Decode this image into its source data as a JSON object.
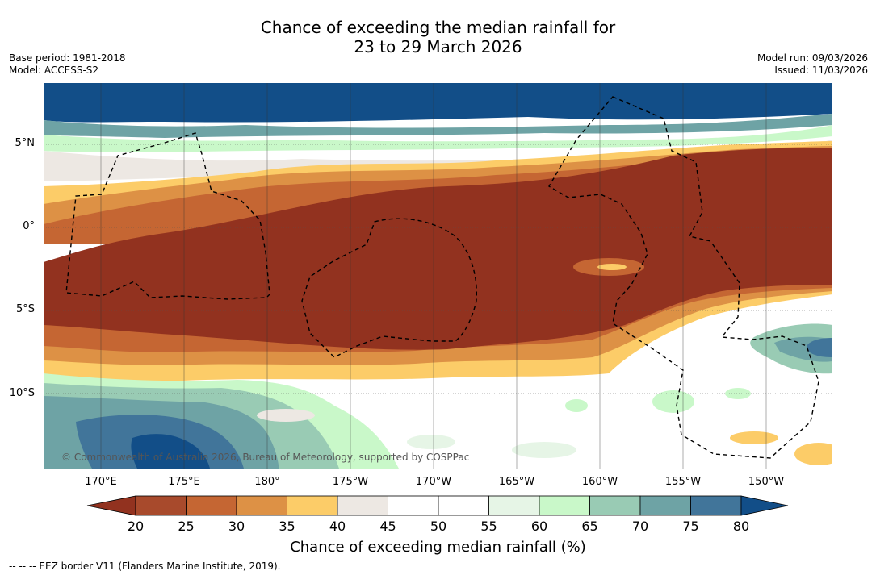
{
  "title": {
    "line1": "Chance of exceeding the median rainfall for",
    "line2": "23 to 29 March 2026"
  },
  "meta": {
    "base_period": "Base period: 1981-2018",
    "model": "Model: ACCESS-S2",
    "model_run": "Model run: 09/03/2026",
    "issued": "Issued: 11/03/2026"
  },
  "map": {
    "copyright": "© Commonwealth of Australia 2026, Bureau of Meteorology, supported by COSPPac",
    "lat_labels": [
      "5°N",
      "0°",
      "5°S",
      "10°S"
    ],
    "lon_labels": [
      "170°E",
      "175°E",
      "180°",
      "175°W",
      "170°W",
      "165°W",
      "160°W",
      "155°W",
      "150°W"
    ]
  },
  "colorbar": {
    "ticks": [
      "20",
      "25",
      "30",
      "35",
      "40",
      "45",
      "50",
      "55",
      "60",
      "65",
      "70",
      "75",
      "80"
    ],
    "colors": [
      "#a84a2c",
      "#c56633",
      "#dd9145",
      "#fccc68",
      "#ede8e3",
      "#ffffff",
      "#ffffff",
      "#e6f5e6",
      "#c9f8c9",
      "#99cbb4",
      "#6ea3a5",
      "#41759a"
    ],
    "low_color": "#92321f",
    "high_color": "#124e88",
    "label": "Chance of exceeding median rainfall (%)"
  },
  "footer": "--  --  -- EEZ border V11 (Flanders Marine Institute, 2019)."
}
